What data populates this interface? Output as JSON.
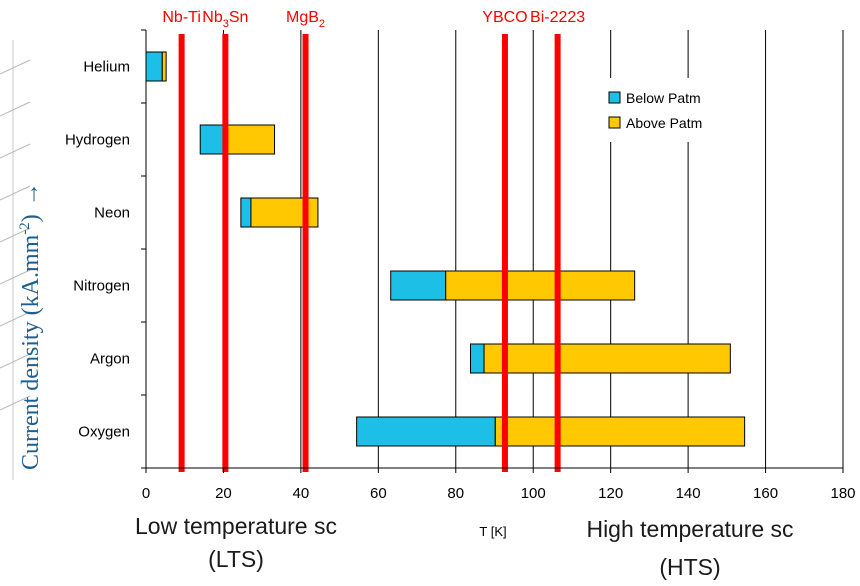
{
  "colors": {
    "below": "#1ebfe6",
    "above": "#ffc800",
    "sc_line": "#ff0000",
    "grid": "#000000",
    "side_label": "#1f5f8f"
  },
  "chart_data": {
    "type": "bar",
    "orientation": "horizontal-range",
    "xlabel": "T [K]",
    "xlim": [
      0,
      180
    ],
    "xticks": [
      0,
      20,
      40,
      60,
      80,
      100,
      120,
      140,
      160,
      180
    ],
    "grid": true,
    "legend_position": "top-right",
    "categories": [
      "Helium",
      "Hydrogen",
      "Neon",
      "Nitrogen",
      "Argon",
      "Oxygen"
    ],
    "series": [
      {
        "name": "Below Patm",
        "ranges": [
          [
            0,
            4.2
          ],
          [
            14,
            20.3
          ],
          [
            24.5,
            27.1
          ],
          [
            63.2,
            77.4
          ],
          [
            83.8,
            87.3
          ],
          [
            54.4,
            90.2
          ]
        ]
      },
      {
        "name": "Above Patm",
        "ranges": [
          [
            4.2,
            5.2
          ],
          [
            20.3,
            33.2
          ],
          [
            27.1,
            44.4
          ],
          [
            77.4,
            126.2
          ],
          [
            87.3,
            150.9
          ],
          [
            90.2,
            154.6
          ]
        ]
      }
    ],
    "superconductors": [
      {
        "name": "Nb-Ti",
        "tc": 9.2
      },
      {
        "name": "Nb",
        "sub": "3",
        "suffix": "Sn",
        "tc": 20.5
      },
      {
        "name": "MgB",
        "sub": "2",
        "suffix": "",
        "tc": 41.2
      },
      {
        "name": "YBCO",
        "tc": 92.7
      },
      {
        "name": "Bi-2223",
        "tc": 106.3
      }
    ]
  },
  "regions": {
    "lts_line1": "Low temperature sc",
    "lts_line2": "(LTS)",
    "hts_line1": "High temperature sc",
    "hts_line2": "(HTS)"
  },
  "side_label": {
    "text": "Current density (kA.mm",
    "sup": "-2",
    "close": ")",
    "arrow": "→"
  }
}
